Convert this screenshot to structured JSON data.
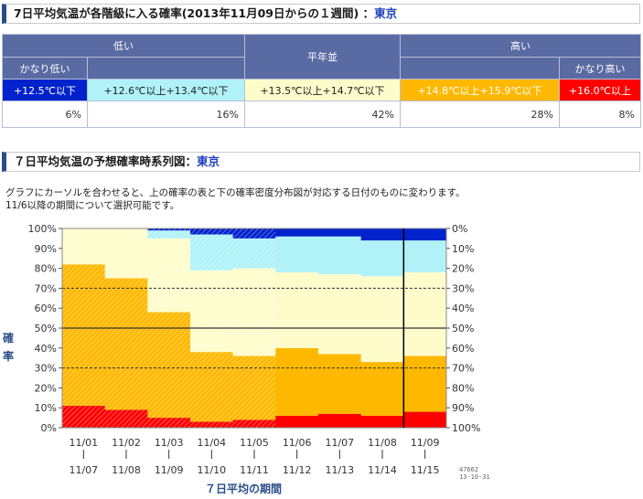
{
  "header1": {
    "title": "7日平均気温が各階級に入る確率(2013年11月09日からの１週間) ：",
    "place": "東京"
  },
  "table": {
    "groups": [
      "低い",
      "平年並",
      "高い"
    ],
    "extremes": [
      "かなり低い",
      "かなり高い"
    ],
    "classes": [
      {
        "label": "+12.5℃以下",
        "color": "#0022cc",
        "text_color": "#ffffff"
      },
      {
        "label": "+12.6℃以上+13.4℃以下",
        "color": "#b0f2f8",
        "text_color": "#222222"
      },
      {
        "label": "+13.5℃以上+14.7℃以下",
        "color": "#fffccc",
        "text_color": "#222222"
      },
      {
        "label": "+14.8℃以上+15.9℃以下",
        "color": "#ffb800",
        "text_color": "#ffffff"
      },
      {
        "label": "+16.0℃以上",
        "color": "#ff0000",
        "text_color": "#ffffff"
      }
    ],
    "values": [
      "6%",
      "16%",
      "42%",
      "28%",
      "8%"
    ]
  },
  "header2": {
    "title": "７日平均気温の予想確率時系列図：",
    "place": "東京"
  },
  "description": [
    "グラフにカーソルを合わせると、上の確率の表と下の確率密度分布図が対応する日付のものに変わります。",
    "11/6以降の期間について選択可能です。"
  ],
  "chart_data": {
    "type": "area",
    "ylabel": "確率",
    "xlabel": "７日平均の期間",
    "left_ticks": [
      "0%",
      "10%",
      "20%",
      "30%",
      "40%",
      "50%",
      "60%",
      "70%",
      "80%",
      "90%",
      "100%"
    ],
    "right_ticks": [
      "100%",
      "90%",
      "80%",
      "70%",
      "60%",
      "50%",
      "40%",
      "30%",
      "20%",
      "10%",
      "0%"
    ],
    "categories": [
      {
        "start": "11/01",
        "end": "11/07"
      },
      {
        "start": "11/02",
        "end": "11/08"
      },
      {
        "start": "11/03",
        "end": "11/09"
      },
      {
        "start": "11/04",
        "end": "11/10"
      },
      {
        "start": "11/05",
        "end": "11/11"
      },
      {
        "start": "11/06",
        "end": "11/12"
      },
      {
        "start": "11/07",
        "end": "11/13"
      },
      {
        "start": "11/08",
        "end": "11/14"
      },
      {
        "start": "11/09",
        "end": "11/15"
      }
    ],
    "hatched_periods": 5,
    "selected_index": 8,
    "series": [
      {
        "color": "#ff0000",
        "values": [
          11,
          9,
          5,
          3,
          4,
          6,
          7,
          6,
          8
        ]
      },
      {
        "color": "#ffb800",
        "values": [
          71,
          66,
          53,
          35,
          32,
          34,
          30,
          27,
          28
        ]
      },
      {
        "color": "#fffccc",
        "values": [
          18,
          25,
          37,
          41,
          44,
          38,
          40,
          43,
          42
        ]
      },
      {
        "color": "#b0f2f8",
        "values": [
          0,
          0,
          4,
          18,
          15,
          18,
          19,
          18,
          16
        ]
      },
      {
        "color": "#0022cc",
        "values": [
          0,
          0,
          1,
          3,
          5,
          4,
          4,
          6,
          6
        ]
      }
    ],
    "grid": {
      "dashed": [
        30,
        70
      ],
      "solid": [
        50
      ]
    },
    "ylim": [
      0,
      100
    ]
  },
  "stamp": [
    "47662",
    "13-10-31"
  ]
}
